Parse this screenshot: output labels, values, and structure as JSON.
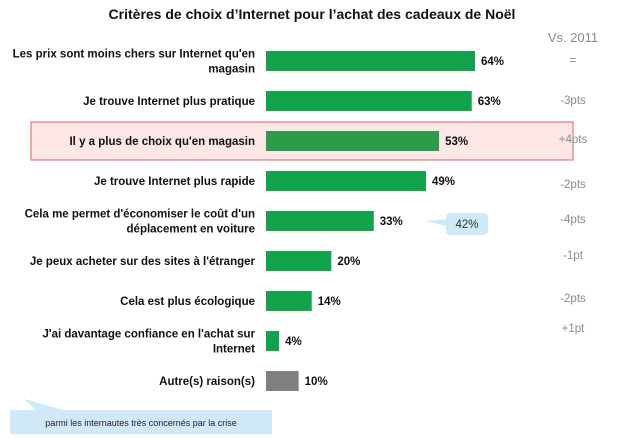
{
  "chart_data": {
    "type": "bar",
    "orientation": "horizontal",
    "title": "Critères de choix d’Internet pour l’achat des cadeaux de Noël",
    "comparison_header": "Vs. 2011",
    "categories": [
      [
        "Les prix sont moins chers sur Internet qu'en",
        "magasin"
      ],
      [
        "Je trouve Internet plus pratique"
      ],
      [
        "Il y a plus de choix qu'en magasin"
      ],
      [
        "Je trouve Internet plus rapide"
      ],
      [
        "Cela me permet d'économiser le coût d'un",
        "déplacement en voiture"
      ],
      [
        "Je peux acheter sur des sites à l'étranger"
      ],
      [
        "Cela est plus écologique"
      ],
      [
        "J'ai davantage confiance en l'achat sur",
        "Internet"
      ],
      [
        "Autre(s) raison(s)"
      ]
    ],
    "values": [
      64,
      63,
      53,
      49,
      33,
      20,
      14,
      4,
      10
    ],
    "value_labels": [
      "64%",
      "63%",
      "53%",
      "49%",
      "33%",
      "20%",
      "14%",
      "4%",
      "10%"
    ],
    "comparison": [
      "=",
      "-3pts",
      "+4pts",
      "-2pts",
      "-4pts",
      "-1pt",
      "-2pts",
      "+1pt",
      ""
    ],
    "highlight_index": 2,
    "callout": {
      "category_index": 4,
      "value_label": "42%"
    },
    "legend_note": "parmi les internautes très concernés par la crise",
    "xlim": [
      0,
      64
    ],
    "colors": {
      "bar": "#12a24b",
      "bar_highlight": "#2d9a4c",
      "bar_other": "#808080",
      "highlight_fill": "#fde6e6",
      "highlight_border": "#e06060",
      "callout_fill": "#cfe9f9",
      "comparison_text": "#8a8a8a"
    }
  }
}
